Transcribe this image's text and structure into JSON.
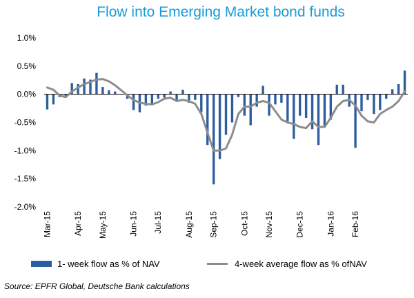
{
  "chart_data": {
    "type": "bar",
    "title": "Flow into Emerging Market bond funds",
    "yticks": [
      "1.0%",
      "0.5%",
      "0.0%",
      "-0.5%",
      "-1.0%",
      "-1.5%",
      "-2.0%"
    ],
    "ylim": [
      -2.0,
      1.0
    ],
    "xticks": [
      "Mar-15",
      "Apr-15",
      "May-15",
      "Jun-15",
      "Jul-15",
      "Aug-15",
      "Sep-15",
      "Oct-15",
      "Nov-15",
      "Dec-15",
      "Jan-16",
      "Feb-16"
    ],
    "xtick_index": [
      0,
      5,
      9,
      14,
      18,
      23,
      27,
      32,
      36,
      41,
      46,
      50
    ],
    "grid": false,
    "legend_position": "bottom",
    "colors": {
      "bar": "#2e5d9f",
      "line": "#8c8c8c",
      "title": "#1a9ad6"
    },
    "series": [
      {
        "name": "1- week flow as % of NAV",
        "type": "bar",
        "values": [
          -0.27,
          -0.18,
          -0.05,
          -0.03,
          0.2,
          0.18,
          0.28,
          0.26,
          0.38,
          0.13,
          0.07,
          0.05,
          0.0,
          -0.08,
          -0.28,
          -0.32,
          -0.2,
          -0.18,
          -0.08,
          -0.06,
          0.05,
          -0.12,
          0.08,
          -0.15,
          -0.1,
          -0.32,
          -0.9,
          -1.6,
          -1.15,
          -0.72,
          -0.5,
          -0.05,
          -0.38,
          -0.55,
          -0.22,
          0.15,
          -0.38,
          -0.18,
          -0.15,
          -0.48,
          -0.79,
          -0.38,
          -0.42,
          -0.62,
          -0.9,
          -0.58,
          -0.45,
          0.17,
          0.17,
          -0.22,
          -0.95,
          -0.3,
          -0.1,
          -0.35,
          -0.28,
          -0.08,
          0.09,
          0.18,
          0.42
        ]
      },
      {
        "name": "4-week average flow as % ofNAV",
        "type": "line",
        "values": [
          0.12,
          0.08,
          -0.02,
          -0.05,
          0.05,
          0.12,
          0.18,
          0.22,
          0.26,
          0.27,
          0.23,
          0.16,
          0.07,
          -0.02,
          -0.1,
          -0.15,
          -0.17,
          -0.18,
          -0.14,
          -0.08,
          -0.06,
          -0.12,
          -0.1,
          -0.12,
          -0.17,
          -0.35,
          -0.68,
          -1.0,
          -1.0,
          -0.96,
          -0.72,
          -0.35,
          -0.22,
          -0.22,
          -0.15,
          -0.12,
          -0.15,
          -0.3,
          -0.45,
          -0.5,
          -0.53,
          -0.58,
          -0.6,
          -0.48,
          -0.58,
          -0.58,
          -0.42,
          -0.22,
          -0.12,
          -0.1,
          -0.2,
          -0.38,
          -0.48,
          -0.5,
          -0.35,
          -0.28,
          -0.22,
          -0.12,
          0.05
        ]
      }
    ]
  },
  "source": "Source: EPFR Global, Deutsche Bank calculations"
}
